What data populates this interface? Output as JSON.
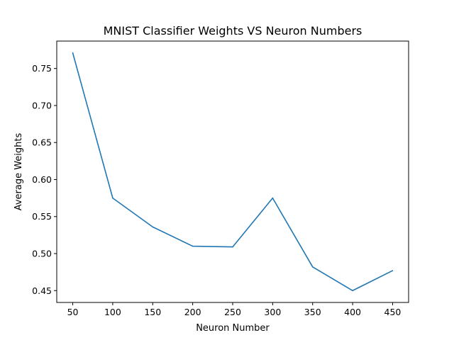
{
  "chart_data": {
    "type": "line",
    "title": "MNIST Classifier Weights VS Neuron Numbers",
    "xlabel": "Neuron Number",
    "ylabel": "Average Weights",
    "x": [
      50,
      100,
      150,
      200,
      250,
      300,
      350,
      400,
      450
    ],
    "series": [
      {
        "values": [
          0.771,
          0.575,
          0.536,
          0.51,
          0.509,
          0.575,
          0.482,
          0.45,
          0.477
        ],
        "color": "#1f77b4"
      }
    ],
    "xticks": [
      "50",
      "100",
      "150",
      "200",
      "250",
      "300",
      "350",
      "400",
      "450"
    ],
    "yticks": [
      "0.45",
      "0.50",
      "0.55",
      "0.60",
      "0.65",
      "0.70",
      "0.75"
    ],
    "xlim": [
      30,
      470
    ],
    "ylim": [
      0.434,
      0.787
    ],
    "grid": false,
    "legend": "none"
  }
}
